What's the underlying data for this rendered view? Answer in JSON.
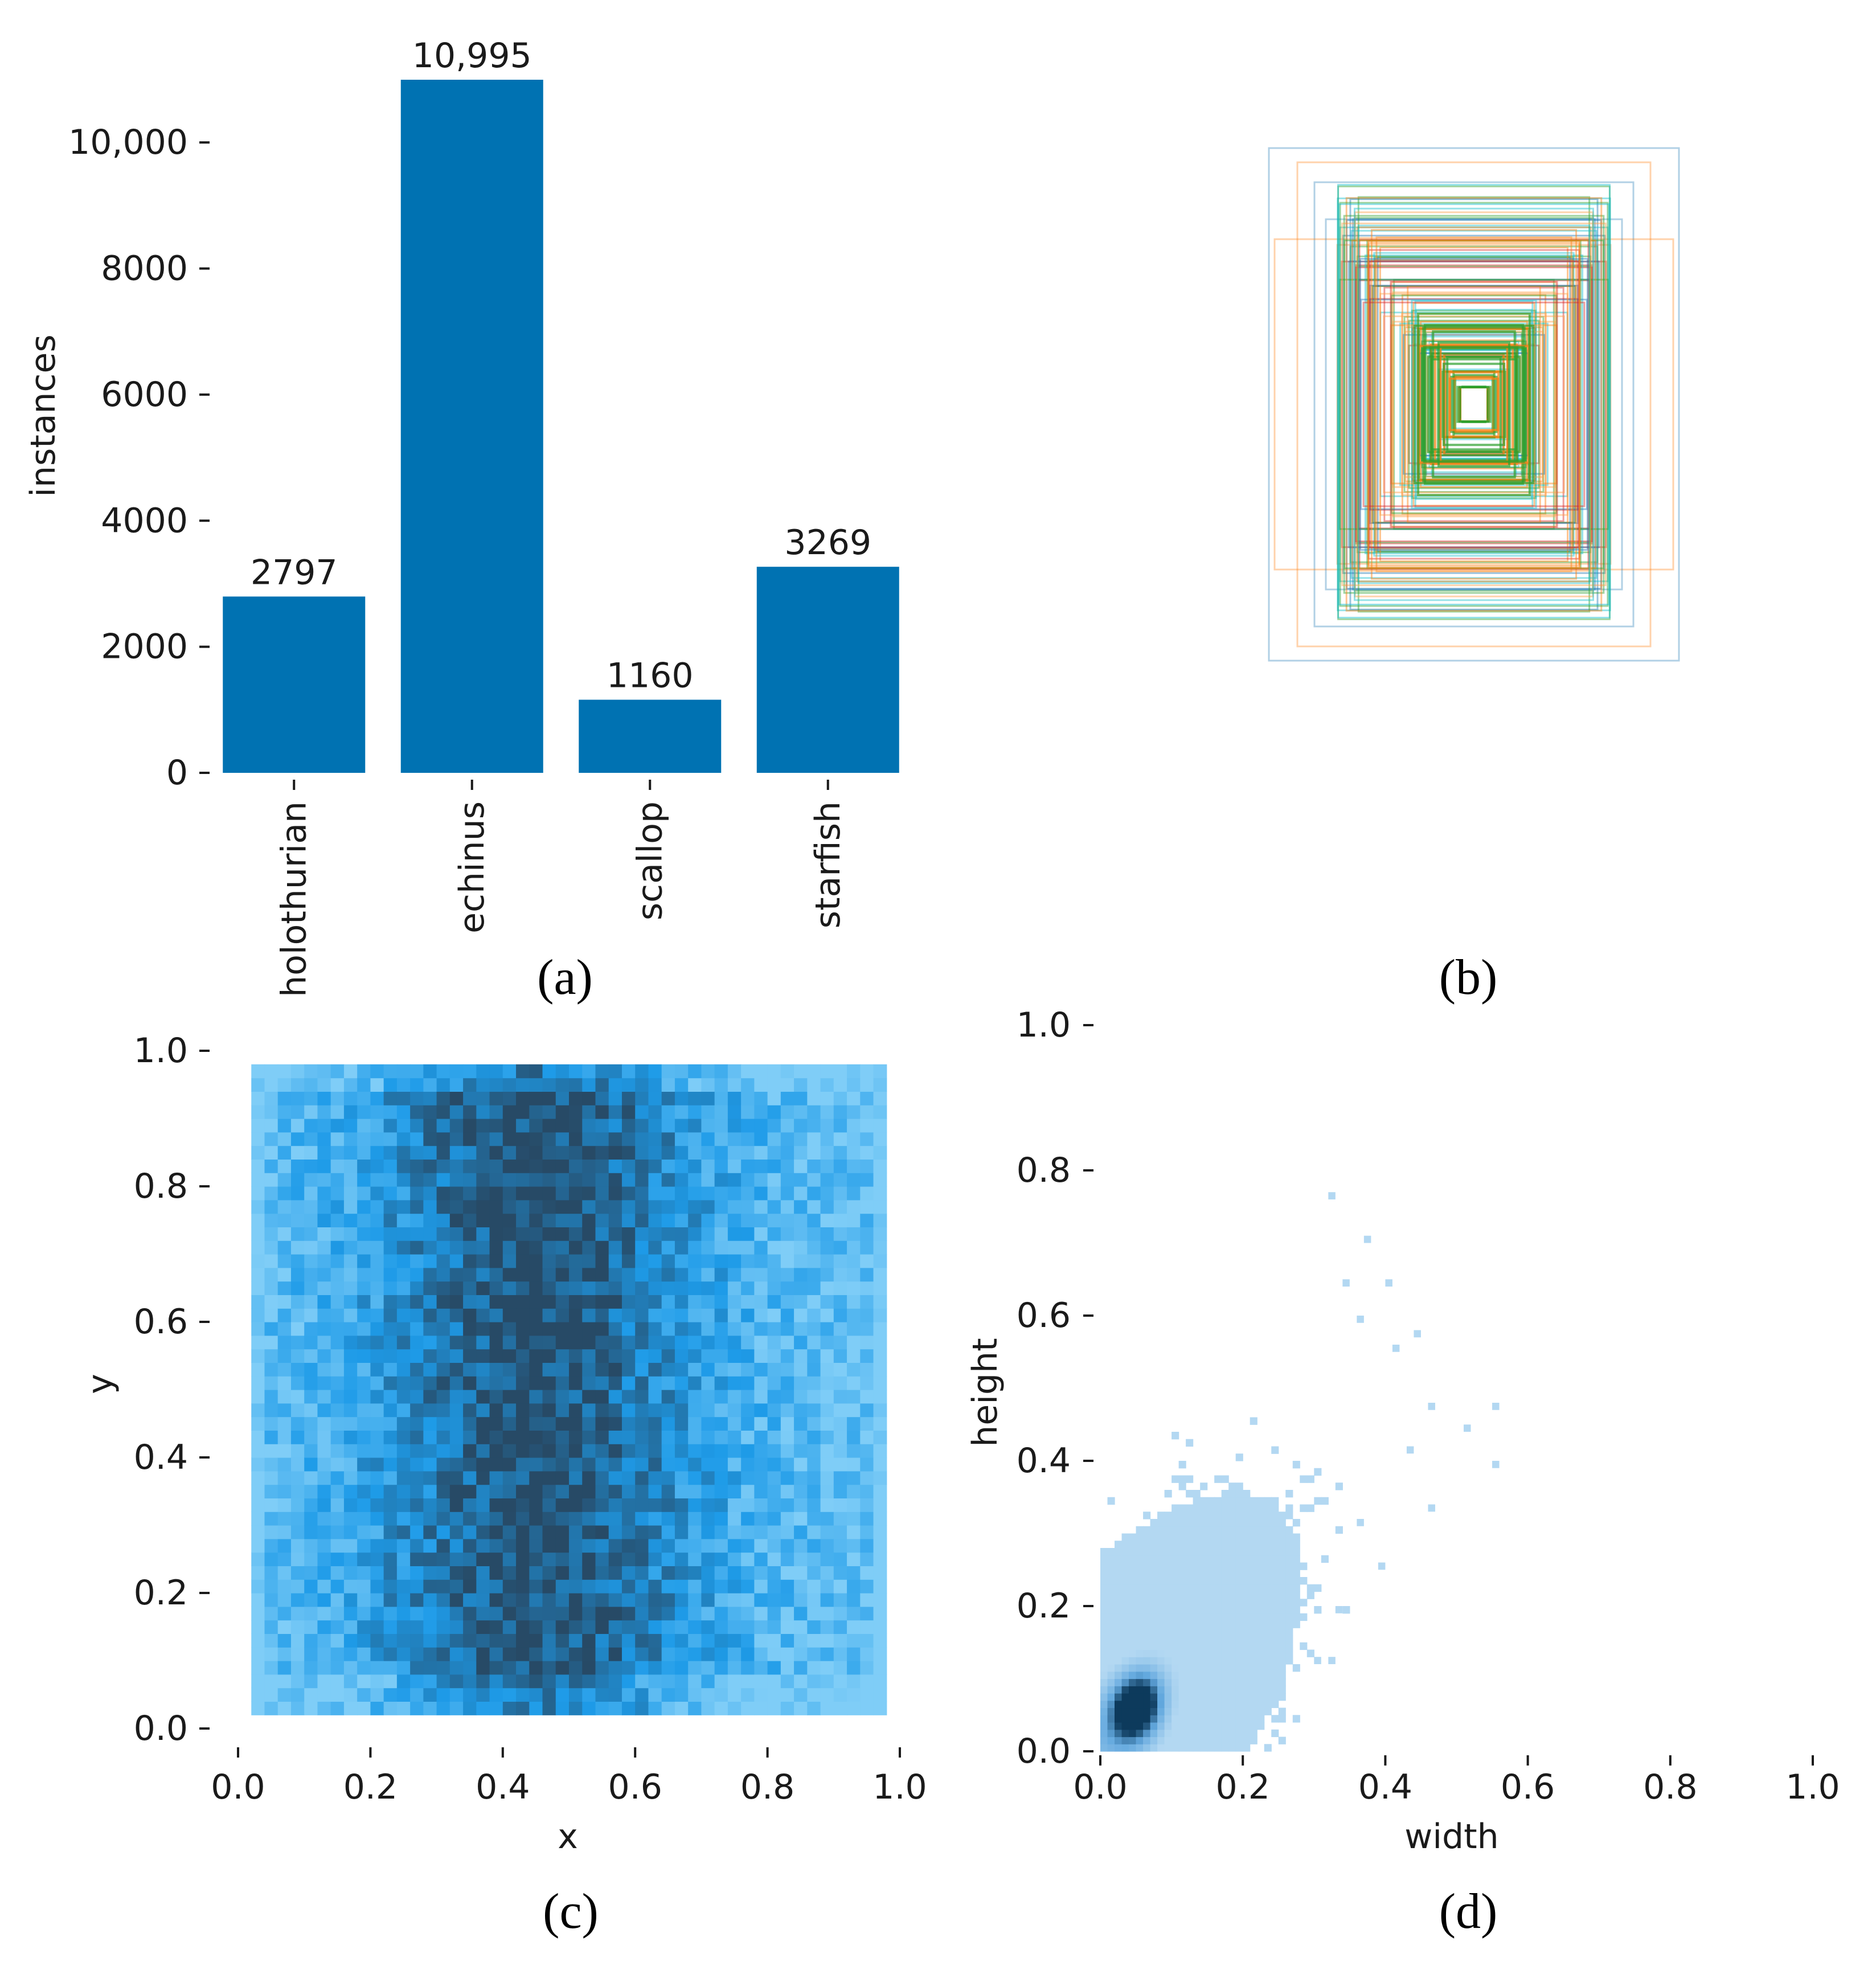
{
  "colors": {
    "bar": "#0072b2",
    "box_palette": [
      "#1f77b4",
      "#ff7f0e",
      "#2ca02c",
      "#d62728",
      "#17becf",
      "#ff9f4a"
    ],
    "hist_light": "#7fcdf7",
    "hist_mid": "#1e9be8",
    "hist_dark": "#274a66",
    "density_light": "#b3d8f2",
    "density_mid": "#62a8de",
    "density_dark": "#0d3a5c"
  },
  "chart_data": [
    {
      "panel": "(a)",
      "type": "bar",
      "categories": [
        "holothurian",
        "echinus",
        "scallop",
        "starfish"
      ],
      "values": [
        2797,
        10995,
        1160,
        3269
      ],
      "value_labels": [
        "2797",
        "10,995",
        "1160",
        "3269"
      ],
      "ylabel": "instances",
      "xlabel": "",
      "ylim": [
        0,
        10995
      ],
      "yticks": [
        0,
        2000,
        4000,
        6000,
        8000,
        10000
      ],
      "ytick_labels": [
        "0",
        "2000",
        "4000",
        "6000",
        "8000",
        "10,000"
      ]
    },
    {
      "panel": "(b)",
      "type": "boxes",
      "description_ref": "overlaid bounding-box outlines centered in the frame",
      "approx_count": 120
    },
    {
      "panel": "(c)",
      "type": "heatmap",
      "xlabel": "x",
      "ylabel": "y",
      "xlim": [
        0,
        1
      ],
      "ylim": [
        0,
        1
      ],
      "xticks": [
        0.0,
        0.2,
        0.4,
        0.6,
        0.8,
        1.0
      ],
      "xtick_labels": [
        "0.0",
        "0.2",
        "0.4",
        "0.6",
        "0.8",
        "1.0"
      ],
      "yticks": [
        0.0,
        0.2,
        0.4,
        0.6,
        0.8,
        1.0
      ],
      "ytick_labels": [
        "0.0",
        "0.2",
        "0.4",
        "0.6",
        "0.8",
        "1.0"
      ],
      "bins": 50,
      "coverage_x": [
        0.02,
        0.98
      ],
      "coverage_y": [
        0.03,
        0.97
      ],
      "densest_x": 0.45
    },
    {
      "panel": "(d)",
      "type": "heatmap",
      "xlabel": "width",
      "ylabel": "height",
      "xlim": [
        0,
        1
      ],
      "ylim": [
        0,
        1
      ],
      "xticks": [
        0.0,
        0.2,
        0.4,
        0.6,
        0.8,
        1.0
      ],
      "xtick_labels": [
        "0.0",
        "0.2",
        "0.4",
        "0.6",
        "0.8",
        "1.0"
      ],
      "yticks": [
        0.0,
        0.2,
        0.4,
        0.6,
        0.8,
        1.0
      ],
      "ytick_labels": [
        "0.0",
        "0.2",
        "0.4",
        "0.6",
        "0.8",
        "1.0"
      ],
      "peak": [
        0.05,
        0.06
      ],
      "max_width": 0.56,
      "max_height": 0.76
    }
  ],
  "captions": [
    "(a)",
    "(b)",
    "(c)",
    "(d)"
  ]
}
